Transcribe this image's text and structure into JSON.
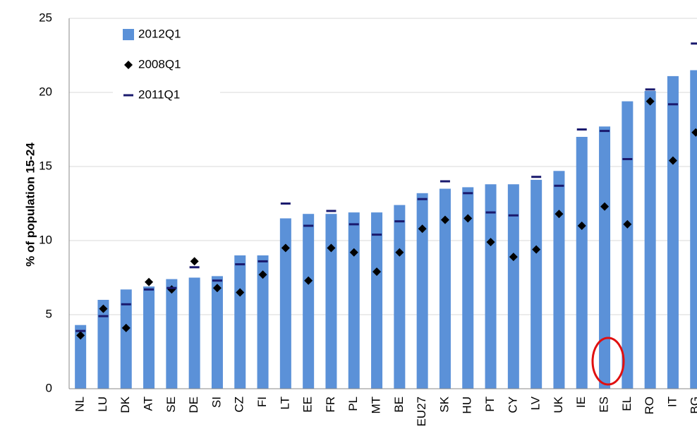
{
  "chart_data": {
    "type": "bar",
    "y_label": "% of population 15-24",
    "categories": [
      "NL",
      "LU",
      "DK",
      "AT",
      "SE",
      "DE",
      "SI",
      "CZ",
      "FI",
      "LT",
      "EE",
      "FR",
      "PL",
      "MT",
      "BE",
      "EU27",
      "SK",
      "HU",
      "PT",
      "CY",
      "LV",
      "UK",
      "IE",
      "ES",
      "EL",
      "RO",
      "IT",
      "BG"
    ],
    "series": [
      {
        "name": "2012Q1",
        "type": "bar",
        "color": "#5b91d8",
        "values": [
          4.3,
          6.0,
          6.7,
          6.9,
          7.4,
          7.5,
          7.6,
          9.0,
          9.0,
          11.5,
          11.8,
          11.8,
          11.9,
          11.9,
          12.4,
          13.2,
          13.5,
          13.6,
          13.8,
          13.8,
          14.1,
          14.7,
          17.0,
          17.7,
          19.4,
          20.1,
          21.1,
          21.5
        ]
      },
      {
        "name": "2008Q1",
        "type": "diamond",
        "color": "#000000",
        "values": [
          3.6,
          5.4,
          4.1,
          7.2,
          6.7,
          8.6,
          6.8,
          6.5,
          7.7,
          9.5,
          7.3,
          9.5,
          9.2,
          7.9,
          9.2,
          10.8,
          11.4,
          11.5,
          9.9,
          8.9,
          9.4,
          11.8,
          11.0,
          12.3,
          11.1,
          19.4,
          15.4,
          17.3
        ]
      },
      {
        "name": "2011Q1",
        "type": "dash",
        "color": "#1a1a6e",
        "values": [
          3.9,
          4.9,
          5.7,
          6.7,
          6.8,
          8.2,
          7.3,
          8.4,
          8.6,
          12.5,
          11.0,
          12.0,
          11.1,
          10.4,
          11.3,
          12.8,
          14.0,
          13.2,
          11.9,
          11.7,
          14.3,
          13.7,
          17.5,
          17.4,
          15.5,
          20.2,
          19.2,
          23.3
        ]
      }
    ],
    "ylim": [
      0,
      25
    ],
    "yticks": [
      0,
      5,
      10,
      15,
      20,
      25
    ],
    "grid": true,
    "legend": "upper left"
  }
}
